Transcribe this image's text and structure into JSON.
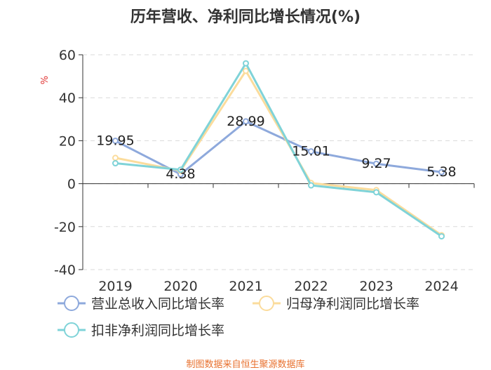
{
  "chart_data": {
    "type": "line",
    "title": "历年营收、净利同比增长情况(%)",
    "ylabel": "%",
    "xlabel": "",
    "categories": [
      "2019",
      "2020",
      "2021",
      "2022",
      "2023",
      "2024"
    ],
    "ylim": [
      -40,
      60
    ],
    "yticks": [
      -40,
      -20,
      0,
      20,
      40,
      60
    ],
    "grid": true,
    "legend_position": "bottom",
    "series": [
      {
        "name": "营业总收入同比增长率",
        "values": [
          19.95,
          4.38,
          28.99,
          15.01,
          9.27,
          5.38
        ],
        "labels": [
          "19.95",
          "4.38",
          "28.99",
          "15.01",
          "9.27",
          "5.38"
        ],
        "color": "#8ea9dc"
      },
      {
        "name": "归母净利润同比增长率",
        "values": [
          12.0,
          6.0,
          52.5,
          0.3,
          -3.0,
          -24.0
        ],
        "labels": [],
        "color": "#fbdc9c"
      },
      {
        "name": "扣非净利润同比增长率",
        "values": [
          9.5,
          6.5,
          56.0,
          -0.8,
          -4.0,
          -24.5
        ],
        "labels": [],
        "color": "#7fd3d8"
      }
    ]
  },
  "source": "制图数据来自恒生聚源数据库"
}
